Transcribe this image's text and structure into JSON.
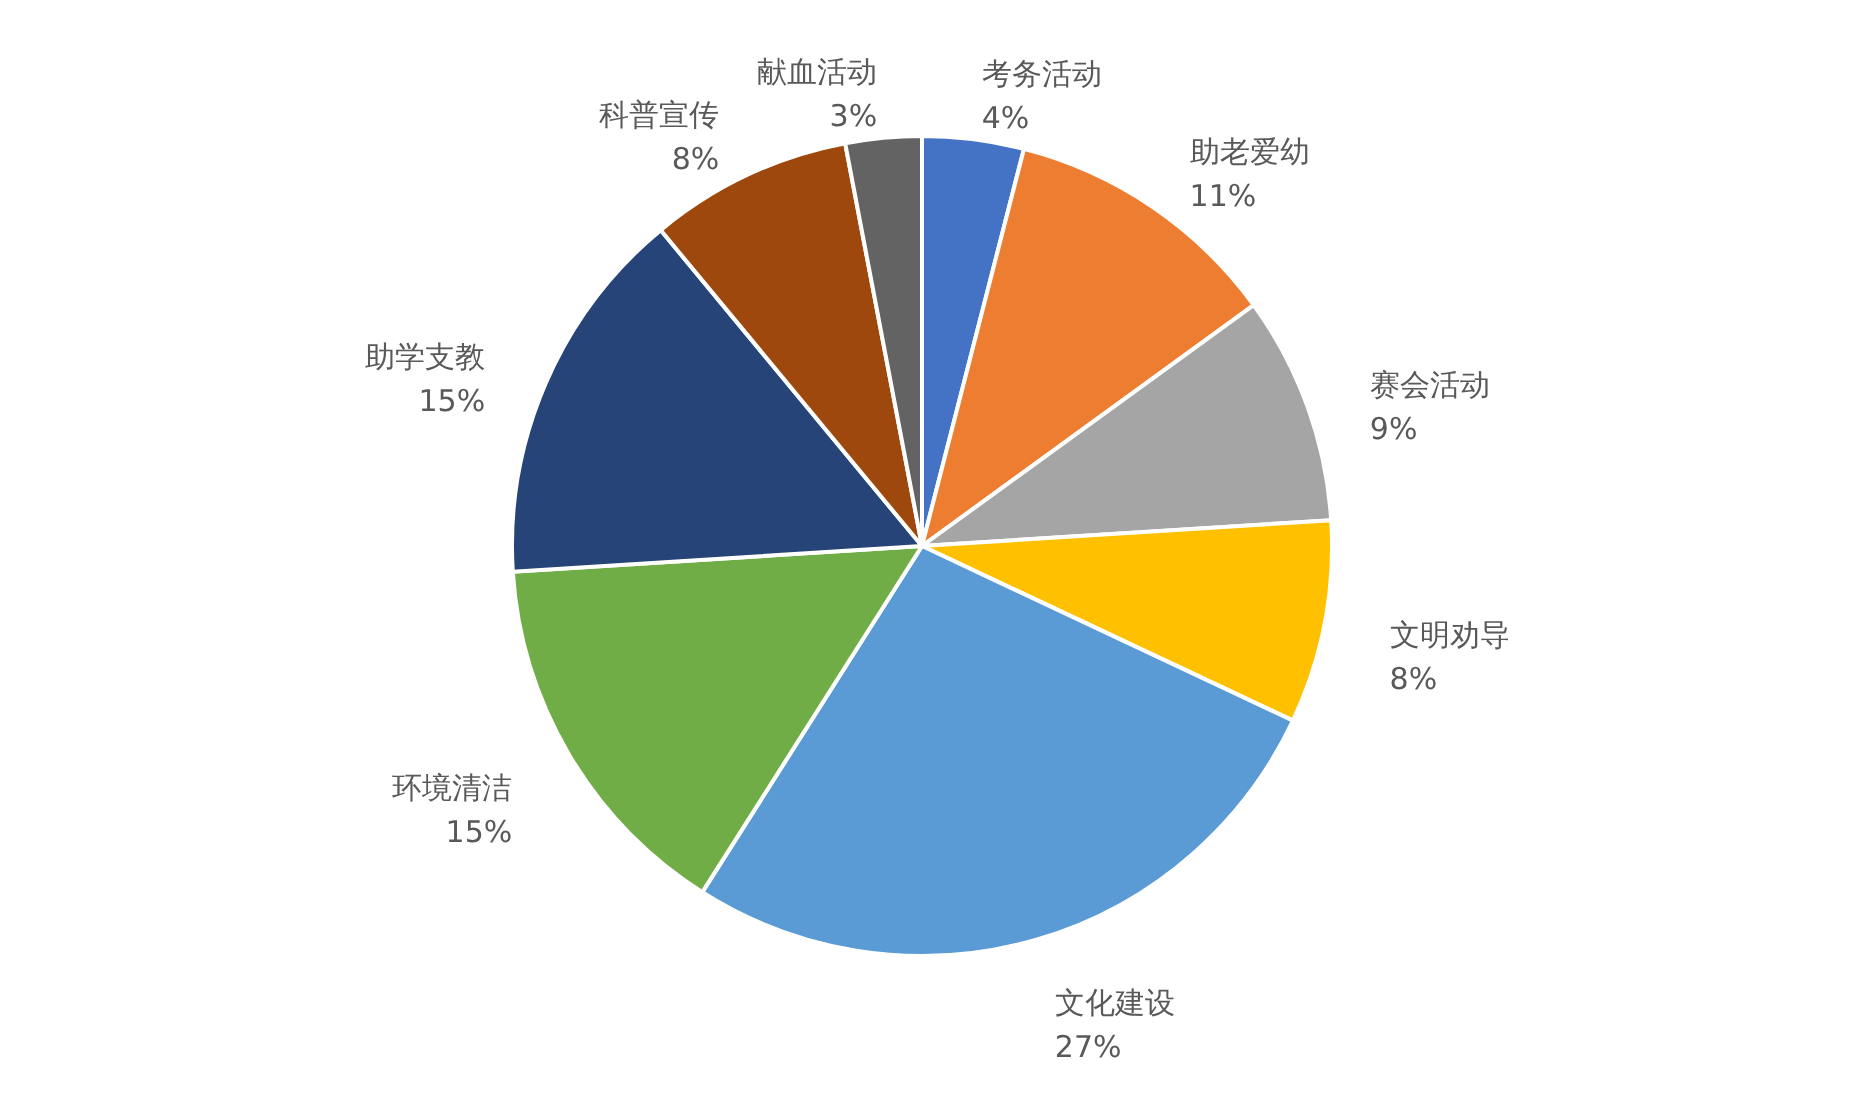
{
  "chart_data": {
    "type": "pie",
    "categories": [
      "考务活动",
      "助老爱幼",
      "赛会活动",
      "文明劝导",
      "文化建设",
      "环境清洁",
      "助学支教",
      "科普宣传",
      "献血活动"
    ],
    "values": [
      4,
      11,
      9,
      8,
      27,
      15,
      15,
      8,
      3
    ],
    "value_labels": [
      "4%",
      "11%",
      "9%",
      "8%",
      "27%",
      "15%",
      "15%",
      "8%",
      "3%"
    ],
    "colors": [
      "#4472c4",
      "#ed7d31",
      "#a5a5a5",
      "#ffc000",
      "#5b9bd5",
      "#70ad47",
      "#264478",
      "#9e480e",
      "#636363"
    ]
  }
}
